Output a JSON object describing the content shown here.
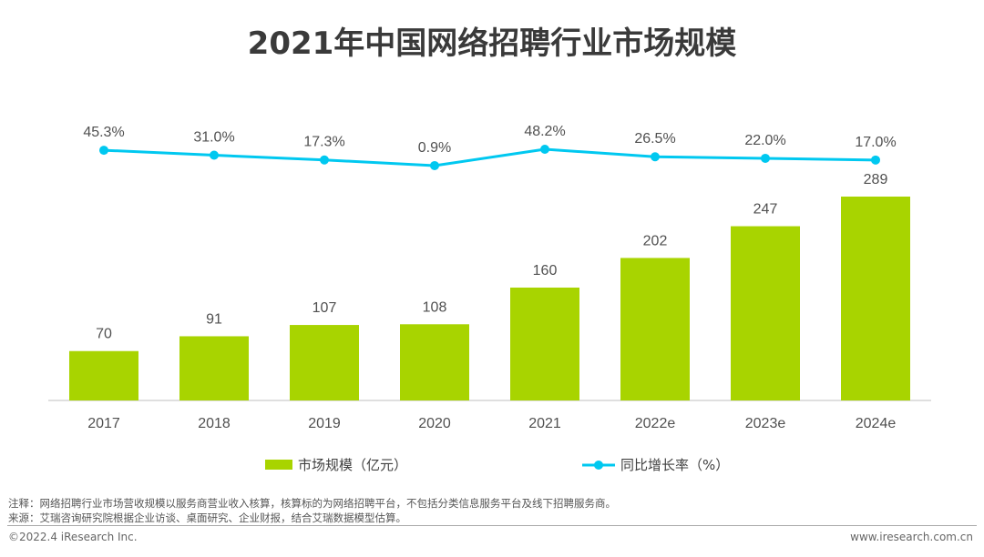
{
  "title": "2021年中国网络招聘行业市场规模",
  "chart_data": {
    "type": "bar+line",
    "categories": [
      "2017",
      "2018",
      "2019",
      "2020",
      "2021",
      "2022e",
      "2023e",
      "2024e"
    ],
    "series": [
      {
        "name": "市场规模（亿元）",
        "type": "bar",
        "axis": "left",
        "values": [
          70,
          91,
          107,
          108,
          160,
          202,
          247,
          289
        ],
        "labels": [
          "70",
          "91",
          "107",
          "108",
          "160",
          "202",
          "247",
          "289"
        ],
        "color": "#a8d400"
      },
      {
        "name": "同比增长率（%）",
        "type": "line",
        "axis": "right",
        "values": [
          45.3,
          31.0,
          17.3,
          0.9,
          48.2,
          26.5,
          22.0,
          17.0
        ],
        "labels": [
          "45.3%",
          "31.0%",
          "17.3%",
          "0.9%",
          "48.2%",
          "26.5%",
          "22.0%",
          "17.0%"
        ],
        "color": "#00c8f0"
      }
    ],
    "grid": false,
    "legend": "bottom"
  },
  "notes": {
    "note": "注释：网络招聘行业市场营收规模以服务商营业收入核算，核算标的为网络招聘平台，不包括分类信息服务平台及线下招聘服务商。",
    "source": "来源：艾瑞咨询研究院根据企业访谈、桌面研究、企业财报，结合艾瑞数据模型估算。"
  },
  "footer": {
    "copyright": "©2022.4 iResearch Inc.",
    "url": "www.iresearch.com.cn"
  }
}
